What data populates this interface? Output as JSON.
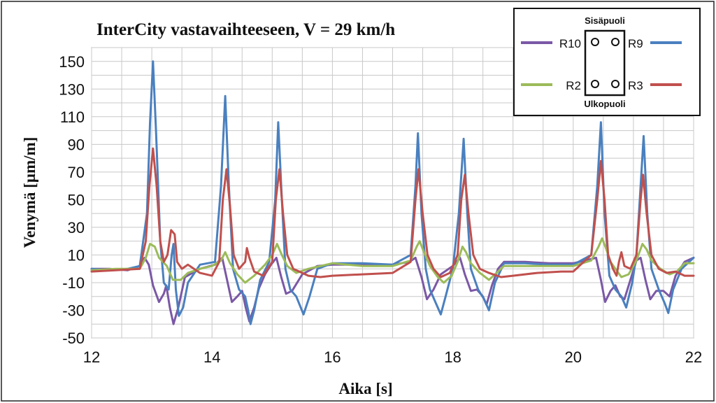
{
  "chart_data": {
    "type": "line",
    "title": "InterCity vastavaihteeseen, V = 29 km/h",
    "xlabel": "Aika  [s]",
    "ylabel": "Venymä  [µm/m]",
    "xlim": [
      12,
      22
    ],
    "ylim": [
      -50,
      160
    ],
    "xticks": [
      "12",
      "14",
      "16",
      "18",
      "20",
      "22"
    ],
    "yticks": [
      "150",
      "130",
      "110",
      "90",
      "70",
      "50",
      "30",
      "10",
      "-10",
      "-30",
      "-50"
    ],
    "grid": true,
    "legend_placement": "top-right",
    "legend_top_caption": "Sisäpuoli",
    "legend_bottom_caption": "Ulkopuoli",
    "series": [
      {
        "name": "R10",
        "color": "#7b58a6",
        "points": [
          [
            12,
            0
          ],
          [
            12.3,
            0
          ],
          [
            12.6,
            -1
          ],
          [
            12.8,
            2
          ],
          [
            12.88,
            8
          ],
          [
            12.95,
            3
          ],
          [
            13.02,
            -12
          ],
          [
            13.12,
            -24
          ],
          [
            13.2,
            -18
          ],
          [
            13.24,
            -12
          ],
          [
            13.3,
            -28
          ],
          [
            13.36,
            -40
          ],
          [
            13.44,
            -28
          ],
          [
            13.55,
            -6
          ],
          [
            13.8,
            0
          ],
          [
            14.05,
            3
          ],
          [
            14.17,
            8
          ],
          [
            14.25,
            -8
          ],
          [
            14.33,
            -24
          ],
          [
            14.42,
            -20
          ],
          [
            14.5,
            -16
          ],
          [
            14.56,
            -28
          ],
          [
            14.62,
            -38
          ],
          [
            14.7,
            -28
          ],
          [
            14.78,
            -14
          ],
          [
            14.88,
            -4
          ],
          [
            14.98,
            3
          ],
          [
            15.07,
            8
          ],
          [
            15.15,
            -6
          ],
          [
            15.23,
            -18
          ],
          [
            15.33,
            -16
          ],
          [
            15.5,
            -4
          ],
          [
            15.75,
            2
          ],
          [
            16.0,
            3
          ],
          [
            16.5,
            3
          ],
          [
            17.0,
            3
          ],
          [
            17.28,
            5
          ],
          [
            17.38,
            8
          ],
          [
            17.48,
            -6
          ],
          [
            17.57,
            -22
          ],
          [
            17.68,
            -15
          ],
          [
            17.8,
            -4
          ],
          [
            18.0,
            2
          ],
          [
            18.12,
            8
          ],
          [
            18.2,
            -4
          ],
          [
            18.3,
            -16
          ],
          [
            18.4,
            -15
          ],
          [
            18.5,
            -20
          ],
          [
            18.56,
            -26
          ],
          [
            18.65,
            -12
          ],
          [
            18.75,
            0
          ],
          [
            18.85,
            5
          ],
          [
            19.2,
            5
          ],
          [
            19.6,
            4
          ],
          [
            20.0,
            4
          ],
          [
            20.2,
            6
          ],
          [
            20.38,
            8
          ],
          [
            20.46,
            -8
          ],
          [
            20.53,
            -24
          ],
          [
            20.62,
            -16
          ],
          [
            20.7,
            -12
          ],
          [
            20.78,
            -20
          ],
          [
            20.85,
            -22
          ],
          [
            20.95,
            -8
          ],
          [
            21.05,
            6
          ],
          [
            21.12,
            8
          ],
          [
            21.2,
            -8
          ],
          [
            21.28,
            -22
          ],
          [
            21.38,
            -16
          ],
          [
            21.5,
            -16
          ],
          [
            21.6,
            -20
          ],
          [
            21.7,
            -5
          ],
          [
            21.85,
            5
          ],
          [
            22,
            8
          ]
        ]
      },
      {
        "name": "R9",
        "color": "#4a80bf",
        "points": [
          [
            12,
            0
          ],
          [
            12.3,
            -1
          ],
          [
            12.6,
            0
          ],
          [
            12.8,
            2
          ],
          [
            12.92,
            40
          ],
          [
            12.97,
            105
          ],
          [
            13.02,
            150
          ],
          [
            13.07,
            100
          ],
          [
            13.14,
            20
          ],
          [
            13.2,
            -10
          ],
          [
            13.28,
            -15
          ],
          [
            13.33,
            10
          ],
          [
            13.36,
            18
          ],
          [
            13.4,
            -15
          ],
          [
            13.45,
            -34
          ],
          [
            13.52,
            -28
          ],
          [
            13.6,
            -10
          ],
          [
            13.8,
            3
          ],
          [
            14.05,
            5
          ],
          [
            14.15,
            60
          ],
          [
            14.22,
            125
          ],
          [
            14.28,
            60
          ],
          [
            14.35,
            0
          ],
          [
            14.45,
            -15
          ],
          [
            14.55,
            -20
          ],
          [
            14.6,
            -30
          ],
          [
            14.64,
            -40
          ],
          [
            14.7,
            -30
          ],
          [
            14.8,
            -8
          ],
          [
            14.95,
            5
          ],
          [
            15.05,
            50
          ],
          [
            15.1,
            106
          ],
          [
            15.16,
            50
          ],
          [
            15.22,
            0
          ],
          [
            15.3,
            -15
          ],
          [
            15.4,
            -20
          ],
          [
            15.52,
            -33
          ],
          [
            15.62,
            -20
          ],
          [
            15.75,
            0
          ],
          [
            16.0,
            4
          ],
          [
            16.5,
            4
          ],
          [
            17.0,
            3
          ],
          [
            17.3,
            10
          ],
          [
            17.38,
            60
          ],
          [
            17.42,
            98
          ],
          [
            17.48,
            40
          ],
          [
            17.55,
            0
          ],
          [
            17.62,
            -15
          ],
          [
            17.72,
            -25
          ],
          [
            17.8,
            -33
          ],
          [
            17.88,
            -20
          ],
          [
            18.0,
            0
          ],
          [
            18.1,
            40
          ],
          [
            18.18,
            94
          ],
          [
            18.24,
            40
          ],
          [
            18.3,
            0
          ],
          [
            18.42,
            -15
          ],
          [
            18.52,
            -22
          ],
          [
            18.6,
            -30
          ],
          [
            18.7,
            -10
          ],
          [
            18.85,
            4
          ],
          [
            19.2,
            4
          ],
          [
            19.6,
            3
          ],
          [
            20.0,
            3
          ],
          [
            20.3,
            10
          ],
          [
            20.4,
            60
          ],
          [
            20.46,
            106
          ],
          [
            20.52,
            40
          ],
          [
            20.6,
            -5
          ],
          [
            20.7,
            -15
          ],
          [
            20.8,
            -20
          ],
          [
            20.88,
            -28
          ],
          [
            20.98,
            -10
          ],
          [
            21.05,
            10
          ],
          [
            21.12,
            60
          ],
          [
            21.17,
            96
          ],
          [
            21.23,
            40
          ],
          [
            21.3,
            0
          ],
          [
            21.42,
            -15
          ],
          [
            21.52,
            -25
          ],
          [
            21.58,
            -32
          ],
          [
            21.66,
            -15
          ],
          [
            21.8,
            0
          ],
          [
            22,
            8
          ]
        ]
      },
      {
        "name": "R2",
        "color": "#9bbb59",
        "points": [
          [
            12,
            -1
          ],
          [
            12.4,
            0
          ],
          [
            12.8,
            0
          ],
          [
            12.9,
            8
          ],
          [
            12.97,
            18
          ],
          [
            13.05,
            16
          ],
          [
            13.12,
            8
          ],
          [
            13.25,
            2
          ],
          [
            13.35,
            -8
          ],
          [
            13.48,
            -8
          ],
          [
            13.6,
            -3
          ],
          [
            13.8,
            0
          ],
          [
            14.0,
            2
          ],
          [
            14.15,
            6
          ],
          [
            14.22,
            12
          ],
          [
            14.3,
            4
          ],
          [
            14.42,
            -4
          ],
          [
            14.55,
            -10
          ],
          [
            14.7,
            -5
          ],
          [
            14.88,
            3
          ],
          [
            15.0,
            10
          ],
          [
            15.08,
            18
          ],
          [
            15.16,
            10
          ],
          [
            15.25,
            2
          ],
          [
            15.4,
            -3
          ],
          [
            15.6,
            0
          ],
          [
            16.0,
            4
          ],
          [
            16.5,
            2
          ],
          [
            17.0,
            2
          ],
          [
            17.3,
            6
          ],
          [
            17.4,
            16
          ],
          [
            17.45,
            20
          ],
          [
            17.52,
            12
          ],
          [
            17.62,
            2
          ],
          [
            17.75,
            -6
          ],
          [
            17.85,
            -10
          ],
          [
            17.98,
            -5
          ],
          [
            18.08,
            5
          ],
          [
            18.16,
            16
          ],
          [
            18.22,
            12
          ],
          [
            18.3,
            4
          ],
          [
            18.45,
            -3
          ],
          [
            18.6,
            -8
          ],
          [
            18.7,
            -4
          ],
          [
            18.85,
            2
          ],
          [
            19.2,
            2
          ],
          [
            19.6,
            2
          ],
          [
            20.0,
            2
          ],
          [
            20.3,
            6
          ],
          [
            20.42,
            16
          ],
          [
            20.48,
            22
          ],
          [
            20.55,
            14
          ],
          [
            20.62,
            5
          ],
          [
            20.7,
            0
          ],
          [
            20.8,
            -6
          ],
          [
            20.92,
            -4
          ],
          [
            21.05,
            6
          ],
          [
            21.15,
            18
          ],
          [
            21.22,
            14
          ],
          [
            21.3,
            6
          ],
          [
            21.45,
            0
          ],
          [
            21.6,
            -4
          ],
          [
            21.72,
            -2
          ],
          [
            21.85,
            4
          ],
          [
            22,
            4
          ]
        ]
      },
      {
        "name": "R3",
        "color": "#c0504d",
        "points": [
          [
            12,
            -2
          ],
          [
            12.4,
            -1
          ],
          [
            12.8,
            0
          ],
          [
            12.9,
            20
          ],
          [
            12.96,
            60
          ],
          [
            13.02,
            87
          ],
          [
            13.08,
            60
          ],
          [
            13.14,
            20
          ],
          [
            13.2,
            5
          ],
          [
            13.26,
            10
          ],
          [
            13.32,
            28
          ],
          [
            13.38,
            25
          ],
          [
            13.42,
            5
          ],
          [
            13.5,
            0
          ],
          [
            13.6,
            3
          ],
          [
            13.8,
            -3
          ],
          [
            14.0,
            -5
          ],
          [
            14.12,
            5
          ],
          [
            14.18,
            50
          ],
          [
            14.24,
            72
          ],
          [
            14.3,
            45
          ],
          [
            14.36,
            10
          ],
          [
            14.45,
            0
          ],
          [
            14.55,
            5
          ],
          [
            14.58,
            15
          ],
          [
            14.62,
            8
          ],
          [
            14.7,
            -2
          ],
          [
            14.85,
            -5
          ],
          [
            15.0,
            5
          ],
          [
            15.06,
            50
          ],
          [
            15.12,
            72
          ],
          [
            15.18,
            40
          ],
          [
            15.25,
            10
          ],
          [
            15.35,
            0
          ],
          [
            15.45,
            -2
          ],
          [
            15.6,
            -5
          ],
          [
            15.8,
            -6
          ],
          [
            16.0,
            -5
          ],
          [
            16.5,
            -4
          ],
          [
            17.0,
            -3
          ],
          [
            17.3,
            5
          ],
          [
            17.38,
            50
          ],
          [
            17.43,
            72
          ],
          [
            17.5,
            40
          ],
          [
            17.58,
            10
          ],
          [
            17.68,
            0
          ],
          [
            17.8,
            -6
          ],
          [
            17.95,
            -3
          ],
          [
            18.08,
            10
          ],
          [
            18.14,
            50
          ],
          [
            18.2,
            68
          ],
          [
            18.26,
            40
          ],
          [
            18.34,
            10
          ],
          [
            18.45,
            0
          ],
          [
            18.6,
            -3
          ],
          [
            18.8,
            -6
          ],
          [
            19.0,
            -5
          ],
          [
            19.4,
            -3
          ],
          [
            19.8,
            -2
          ],
          [
            20.0,
            -2
          ],
          [
            20.3,
            10
          ],
          [
            20.4,
            50
          ],
          [
            20.46,
            78
          ],
          [
            20.52,
            50
          ],
          [
            20.58,
            10
          ],
          [
            20.66,
            0
          ],
          [
            20.72,
            -5
          ],
          [
            20.76,
            5
          ],
          [
            20.8,
            12
          ],
          [
            20.85,
            2
          ],
          [
            20.95,
            0
          ],
          [
            21.05,
            10
          ],
          [
            21.12,
            50
          ],
          [
            21.16,
            68
          ],
          [
            21.22,
            40
          ],
          [
            21.3,
            10
          ],
          [
            21.42,
            0
          ],
          [
            21.55,
            -3
          ],
          [
            21.7,
            -2
          ],
          [
            21.85,
            -5
          ],
          [
            22,
            -5
          ]
        ]
      }
    ]
  }
}
